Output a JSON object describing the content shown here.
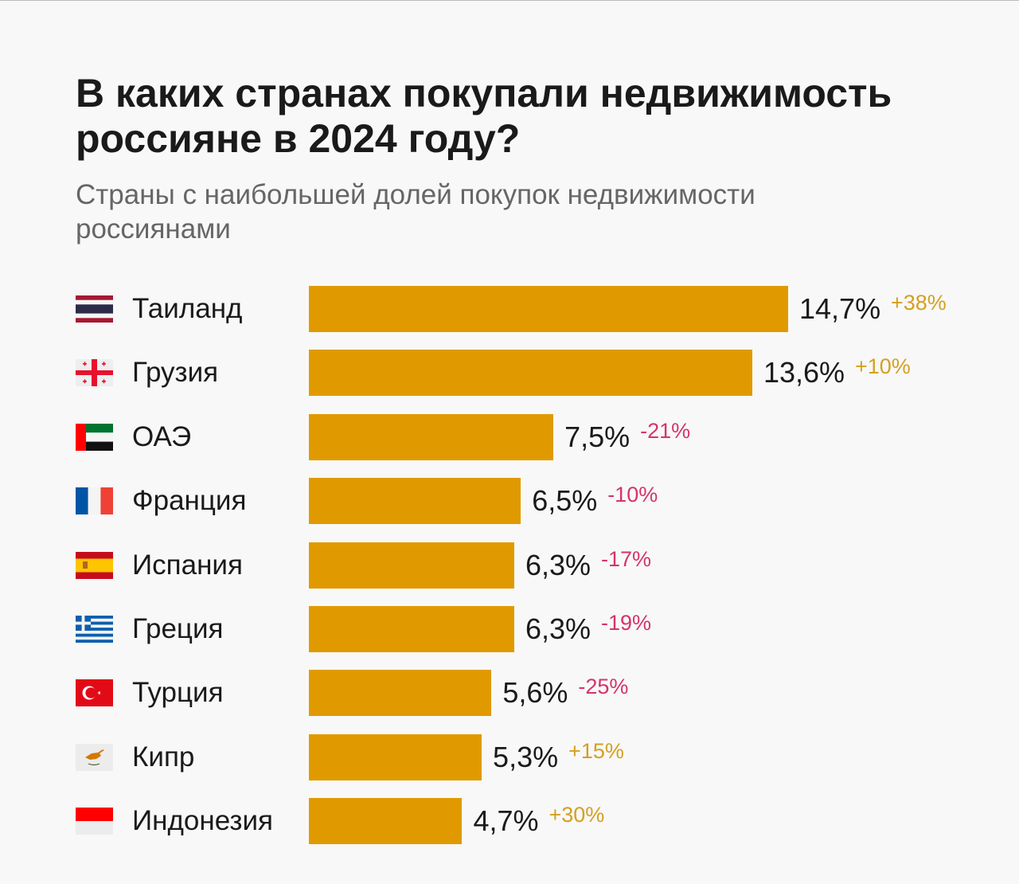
{
  "chart_data": {
    "type": "bar",
    "orientation": "horizontal",
    "title": "В каких странах покупали недвижимость россияне в 2024 году?",
    "subtitle": "Страны с наибольшей долей покупок недвижимости россиянами",
    "categories": [
      "Таиланд",
      "Грузия",
      "ОАЭ",
      "Франция",
      "Испания",
      "Греция",
      "Турция",
      "Кипр",
      "Индонезия"
    ],
    "values": [
      14.7,
      13.6,
      7.5,
      6.5,
      6.3,
      6.3,
      5.6,
      5.3,
      4.7
    ],
    "value_labels": [
      "14,7%",
      "13,6%",
      "7,5%",
      "6,5%",
      "6,3%",
      "6,3%",
      "5,6%",
      "5,3%",
      "4,7%"
    ],
    "changes": [
      "+38%",
      "+10%",
      "-21%",
      "-10%",
      "-17%",
      "-19%",
      "-25%",
      "+15%",
      "+30%"
    ],
    "flags": [
      "thailand-flag",
      "georgia-flag",
      "uae-flag",
      "france-flag",
      "spain-flag",
      "greece-flag",
      "turkey-flag",
      "cyprus-flag",
      "indonesia-flag"
    ],
    "unit": "%",
    "grid": false,
    "colors": {
      "bar": "#e09a00",
      "positive": "#d4a020",
      "negative": "#d6336c",
      "background": "#f8f8f8"
    }
  }
}
